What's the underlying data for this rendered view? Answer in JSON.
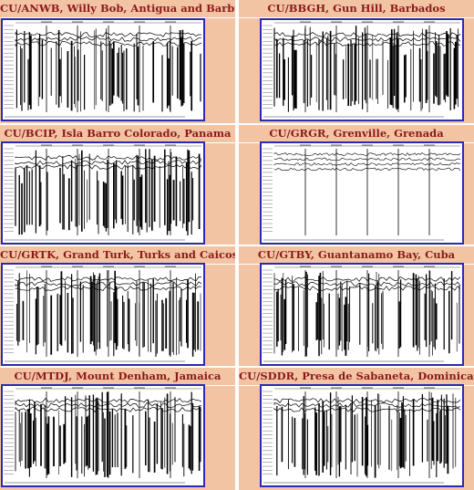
{
  "panels": [
    {
      "id": "anwb",
      "title": "CU/ANWB, Willy Bob, Antigua and Barbuda",
      "style": "dense"
    },
    {
      "id": "bbgh",
      "title": "CU/BBGH, Gun Hill, Barbados",
      "style": "dense"
    },
    {
      "id": "bcip",
      "title": "CU/BCIP, Isla Barro Colorado, Panama",
      "style": "dense"
    },
    {
      "id": "grgr",
      "title": "CU/GRGR, Grenville, Grenada",
      "style": "quiet"
    },
    {
      "id": "grtk",
      "title": "CU/GRTK, Grand Turk, Turks and Caicos Islands",
      "style": "dense"
    },
    {
      "id": "gtby",
      "title": "CU/GTBY, Guantanamo Bay, Cuba",
      "style": "dense"
    },
    {
      "id": "mtdj",
      "title": "CU/MTDJ, Mount Denham, Jamaica",
      "style": "dense"
    },
    {
      "id": "sddr",
      "title": "CU/SDDR, Presa de Sabaneta, Dominican Republic",
      "style": "dense"
    }
  ],
  "colors": {
    "background": "#f3c4a4",
    "title": "#8b1a1a",
    "frame": "#2b2bb0",
    "trace": "#000000"
  }
}
